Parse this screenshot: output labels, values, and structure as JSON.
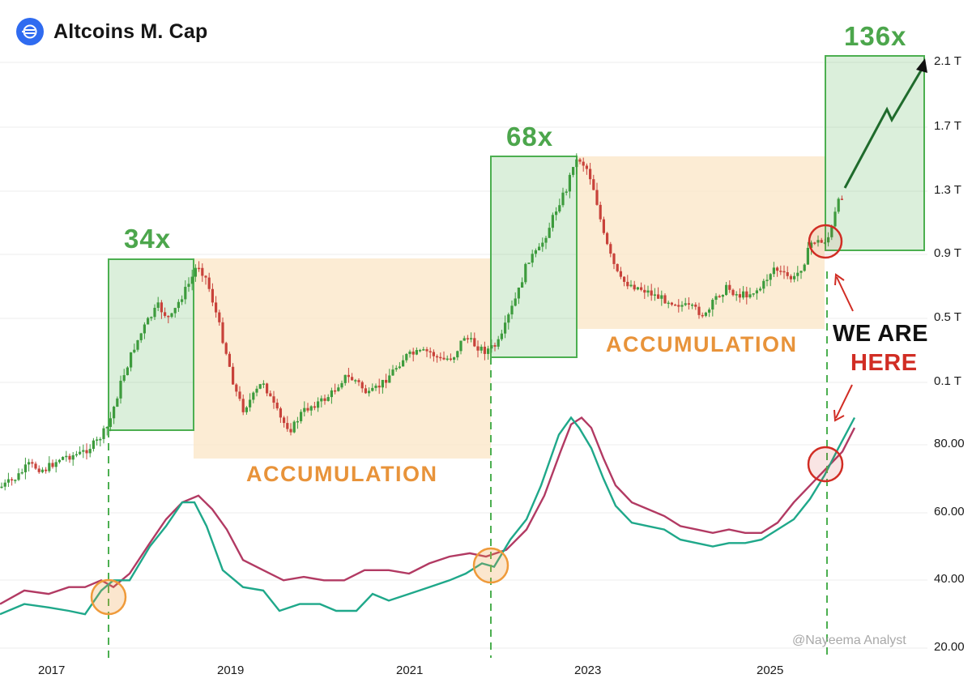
{
  "header": {
    "title": "Altcoins M. Cap",
    "logo_icon": "exchange-logo-icon"
  },
  "chart_data": [
    {
      "type": "candlestick",
      "title": "Altcoins M. Cap",
      "price_axis_ticks": [
        "2.1 T",
        "1.7 T",
        "1.3 T",
        "0.9 T",
        "0.5 T",
        "0.1 T"
      ],
      "price_axis_values": [
        2.1,
        1.7,
        1.3,
        0.9,
        0.5,
        0.1
      ],
      "x_tick_labels": [
        "2017",
        "2019",
        "2021",
        "2023",
        "2025"
      ],
      "approx_range_trillions": [
        0.02,
        1.55
      ],
      "multipliers": [
        {
          "label": "34x",
          "from": "2017-07",
          "to": "2018-06"
        },
        {
          "label": "68x",
          "from": "2021-09",
          "to": "2022-10"
        },
        {
          "label": "136x",
          "from": "2025-03",
          "to": "projected"
        }
      ],
      "accumulation_zones": [
        {
          "label": "ACCUMULATION",
          "from": "2018-06",
          "to": "2021-09"
        },
        {
          "label": "ACCUMULATION",
          "from": "2022-10",
          "to": "2025-02"
        }
      ],
      "annotations": [
        "WE ARE",
        "HERE"
      ],
      "projection": "upward arrow toward 2.1 T"
    },
    {
      "type": "line",
      "y_axis_ticks": [
        "80.00",
        "60.00",
        "40.00",
        "20.00"
      ],
      "y_axis_values": [
        80,
        60,
        40,
        20
      ],
      "series": [
        {
          "color": "#1fa88a"
        },
        {
          "color": "#b23a63"
        }
      ],
      "crossovers": [
        "2017-07",
        "2021-09",
        "2025-02"
      ]
    }
  ],
  "labels": {
    "mult_1": "34x",
    "mult_2": "68x",
    "mult_3": "136x",
    "acc_1": "ACCUMULATION",
    "acc_2": "ACCUMULATION",
    "we_are": "WE ARE",
    "here": "HERE",
    "watermark": "@Nayeema Analyst"
  },
  "colors": {
    "green_box": "#4caf50",
    "accumulation": "#fbe9cc",
    "candle_up": "#3d9b3d",
    "candle_down": "#c8423a",
    "teal_line": "#1fa88a",
    "maroon_line": "#b23a63",
    "dashed_line": "#4caf50",
    "orange_circle": "#ef9a3a",
    "red_circle": "#d12d24"
  }
}
